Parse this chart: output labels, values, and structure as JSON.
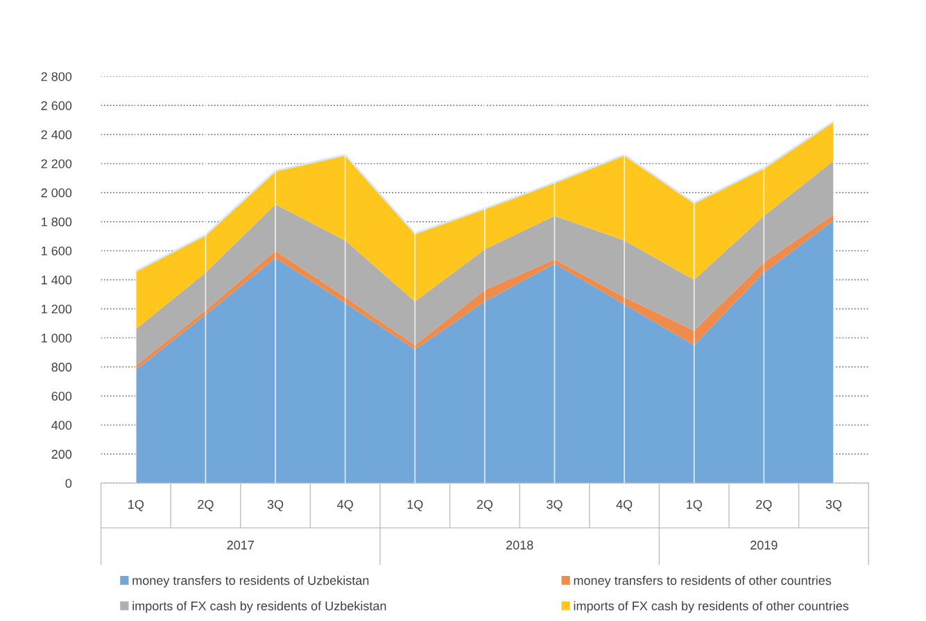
{
  "chart_data": {
    "type": "area",
    "stacked": true,
    "categories": [
      "1Q",
      "2Q",
      "3Q",
      "4Q",
      "1Q",
      "2Q",
      "3Q",
      "4Q",
      "1Q",
      "2Q",
      "3Q"
    ],
    "series": [
      {
        "name": "money transfers to residents of Uzbekistan",
        "color": "#72a7da",
        "values": [
          780,
          1160,
          1550,
          1240,
          920,
          1250,
          1510,
          1230,
          950,
          1450,
          1810
        ]
      },
      {
        "name": "money transfers to residents of other countries",
        "color": "#ef8c4b",
        "values": [
          30,
          30,
          50,
          40,
          30,
          80,
          30,
          50,
          100,
          70,
          40
        ]
      },
      {
        "name": "imports of FX cash by residents of Uzbekistan",
        "color": "#afafaf",
        "values": [
          250,
          260,
          320,
          390,
          300,
          280,
          300,
          390,
          350,
          320,
          370
        ]
      },
      {
        "name": "imports of FX cash by residents of other countries",
        "color": "#ffc61e",
        "values": [
          400,
          260,
          230,
          590,
          470,
          280,
          230,
          590,
          530,
          330,
          270
        ]
      }
    ],
    "ylim": [
      0,
      2800
    ],
    "yticks": [
      0,
      200,
      400,
      600,
      800,
      {
        "value": 1000,
        "label": "1 000"
      },
      {
        "value": 1200,
        "label": "1 200"
      },
      {
        "value": 1400,
        "label": "1 400"
      },
      {
        "value": 1600,
        "label": "1 600"
      },
      {
        "value": 1800,
        "label": "1 800"
      },
      {
        "value": 2000,
        "label": "2 000"
      },
      {
        "value": 2200,
        "label": "2 200"
      },
      {
        "value": 2400,
        "label": "2 400"
      },
      {
        "value": 2600,
        "label": "2 600"
      },
      {
        "value": 2800,
        "label": "2 800"
      }
    ],
    "annotations": [
      "2017",
      "2018",
      "2019"
    ],
    "grid": true,
    "legend": "bottom"
  }
}
